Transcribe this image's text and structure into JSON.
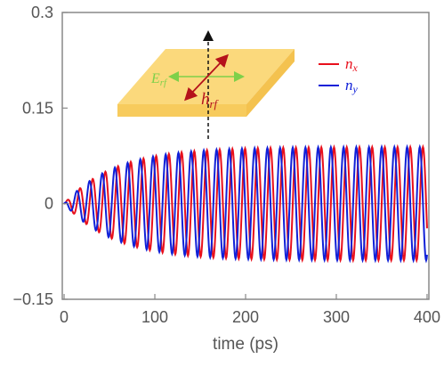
{
  "chart_data": {
    "type": "line",
    "title": "",
    "xlabel": "time (ps)",
    "ylabel": "",
    "xlim": [
      -2,
      402
    ],
    "ylim": [
      -0.15,
      0.3
    ],
    "x_ticks": [
      0,
      100,
      200,
      300,
      400
    ],
    "x_tick_labels": [
      "0",
      "100",
      "200",
      "300",
      "400"
    ],
    "y_ticks": [
      -0.15,
      0,
      0.15,
      0.3
    ],
    "y_tick_labels": [
      "−0.15",
      "0",
      "0.15",
      "0.3"
    ],
    "zero_line": true,
    "grid": false,
    "legend_position": "top-right",
    "series": [
      {
        "name": "n_x",
        "name_main": "n",
        "name_sub": "x",
        "color": "#e8101c",
        "waveform": "damped-onset sinusoid",
        "amplitude": 0.089,
        "period_ps": 14.0,
        "rise_time_ps": 55,
        "phase_shift_ps": 0,
        "x_range": [
          0,
          400
        ]
      },
      {
        "name": "n_y",
        "name_main": "n",
        "name_sub": "y",
        "color": "#1020d8",
        "waveform": "damped-onset sinusoid",
        "amplitude": 0.089,
        "period_ps": 14.0,
        "rise_time_ps": 55,
        "phase_shift_ps": -3.5,
        "x_range": [
          0,
          400
        ]
      }
    ]
  },
  "inset": {
    "e_label_main": "E",
    "e_label_sub": "rf",
    "h_label_main": "h",
    "h_label_sub": "rf",
    "slab_color": "#fbd97c",
    "e_arrow_color": "#7ed04a",
    "h_arrow_color": "#b5121b"
  }
}
